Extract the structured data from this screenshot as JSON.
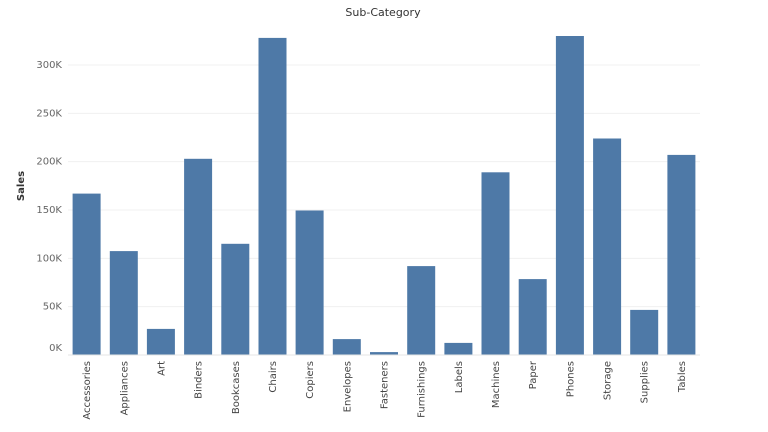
{
  "chart_data": {
    "type": "bar",
    "title": "Sub-Category",
    "xlabel": "",
    "ylabel": "Sales",
    "categories": [
      "Accessories",
      "Appliances",
      "Art",
      "Binders",
      "Bookcases",
      "Chairs",
      "Copiers",
      "Envelopes",
      "Fasteners",
      "Furnishings",
      "Labels",
      "Machines",
      "Paper",
      "Phones",
      "Storage",
      "Supplies",
      "Tables"
    ],
    "values": [
      167000,
      107500,
      27000,
      203000,
      115000,
      328000,
      149500,
      16500,
      3000,
      92000,
      12500,
      189000,
      78500,
      330000,
      224000,
      46700,
      207000
    ],
    "yticks": [
      0,
      50000,
      100000,
      150000,
      200000,
      250000,
      300000
    ],
    "ytick_labels": [
      "0K",
      "50K",
      "100K",
      "150K",
      "200K",
      "250K",
      "300K"
    ],
    "ylim": [
      0,
      345000
    ],
    "grid": true,
    "bar_color": "#4e79a7"
  }
}
